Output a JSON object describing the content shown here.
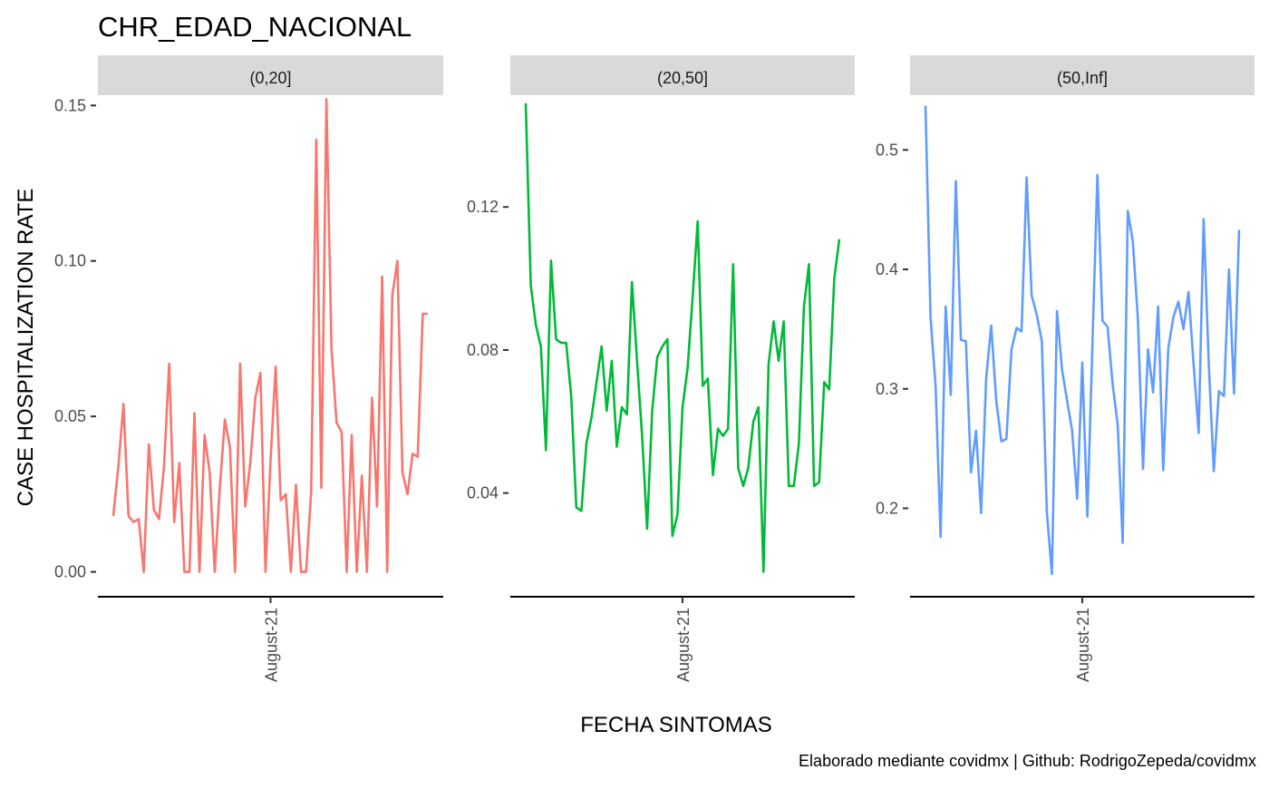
{
  "title": "CHR_EDAD_NACIONAL",
  "y_axis_label": "CASE HOSPITALIZATION RATE",
  "x_axis_label": "FECHA SINTOMAS",
  "caption": "Elaborado mediante covidmx | Github: RodrigoZepeda/covidmx",
  "colors": {
    "panel_1": "#F8766D",
    "panel_2": "#00BA38",
    "panel_3": "#619CFF",
    "strip": "#D9D9D9"
  },
  "chart_data": [
    {
      "type": "line",
      "facet": "(0,20]",
      "x_tick_labels": [
        "August-21"
      ],
      "y_ticks": [
        0.0,
        0.05,
        0.1,
        0.15
      ],
      "y_tick_labels": [
        "0.00",
        "0.05",
        "0.10",
        "0.15"
      ],
      "ylim": [
        -0.008,
        0.153
      ],
      "values": [
        0.018,
        0.034,
        0.054,
        0.018,
        0.016,
        0.017,
        0.0,
        0.041,
        0.02,
        0.017,
        0.034,
        0.067,
        0.016,
        0.035,
        0.0,
        0.0,
        0.051,
        0.0,
        0.044,
        0.032,
        0.0,
        0.027,
        0.049,
        0.04,
        0.0,
        0.067,
        0.021,
        0.035,
        0.056,
        0.064,
        0.0,
        0.036,
        0.066,
        0.023,
        0.025,
        0.0,
        0.028,
        0.0,
        0.0,
        0.026,
        0.139,
        0.027,
        0.152,
        0.072,
        0.048,
        0.045,
        0.0,
        0.044,
        0.0,
        0.031,
        0.0,
        0.056,
        0.021,
        0.095,
        0.0,
        0.089,
        0.1,
        0.032,
        0.025,
        0.038,
        0.037,
        0.083,
        0.083
      ]
    },
    {
      "type": "line",
      "facet": "(20,50]",
      "x_tick_labels": [
        "August-21"
      ],
      "y_ticks": [
        0.04,
        0.08,
        0.12
      ],
      "y_tick_labels": [
        "0.04",
        "0.08",
        "0.12"
      ],
      "ylim": [
        0.011,
        0.151
      ],
      "values": [
        0.149,
        0.098,
        0.087,
        0.081,
        0.052,
        0.105,
        0.083,
        0.082,
        0.082,
        0.067,
        0.036,
        0.035,
        0.054,
        0.061,
        0.071,
        0.081,
        0.063,
        0.077,
        0.053,
        0.064,
        0.062,
        0.099,
        0.077,
        0.056,
        0.03,
        0.063,
        0.078,
        0.081,
        0.083,
        0.028,
        0.034,
        0.064,
        0.075,
        0.095,
        0.116,
        0.07,
        0.072,
        0.045,
        0.058,
        0.056,
        0.058,
        0.104,
        0.047,
        0.042,
        0.047,
        0.06,
        0.064,
        0.018,
        0.076,
        0.088,
        0.077,
        0.088,
        0.042,
        0.042,
        0.054,
        0.092,
        0.104,
        0.042,
        0.043,
        0.071,
        0.069,
        0.1,
        0.111
      ]
    },
    {
      "type": "line",
      "facet": "(50,Inf]",
      "x_tick_labels": [
        "August-21"
      ],
      "y_ticks": [
        0.2,
        0.3,
        0.4,
        0.5
      ],
      "y_tick_labels": [
        "0.2",
        "0.3",
        "0.4",
        "0.5"
      ],
      "ylim": [
        0.126,
        0.545
      ],
      "values": [
        0.537,
        0.36,
        0.302,
        0.176,
        0.369,
        0.295,
        0.474,
        0.341,
        0.34,
        0.23,
        0.265,
        0.196,
        0.309,
        0.353,
        0.29,
        0.256,
        0.258,
        0.333,
        0.351,
        0.348,
        0.477,
        0.378,
        0.362,
        0.34,
        0.197,
        0.145,
        0.365,
        0.316,
        0.29,
        0.265,
        0.208,
        0.322,
        0.193,
        0.337,
        0.479,
        0.357,
        0.352,
        0.304,
        0.27,
        0.171,
        0.449,
        0.423,
        0.358,
        0.233,
        0.333,
        0.297,
        0.369,
        0.232,
        0.334,
        0.36,
        0.373,
        0.35,
        0.381,
        0.321,
        0.263,
        0.442,
        0.322,
        0.231,
        0.298,
        0.294,
        0.4,
        0.296,
        0.433
      ]
    }
  ]
}
